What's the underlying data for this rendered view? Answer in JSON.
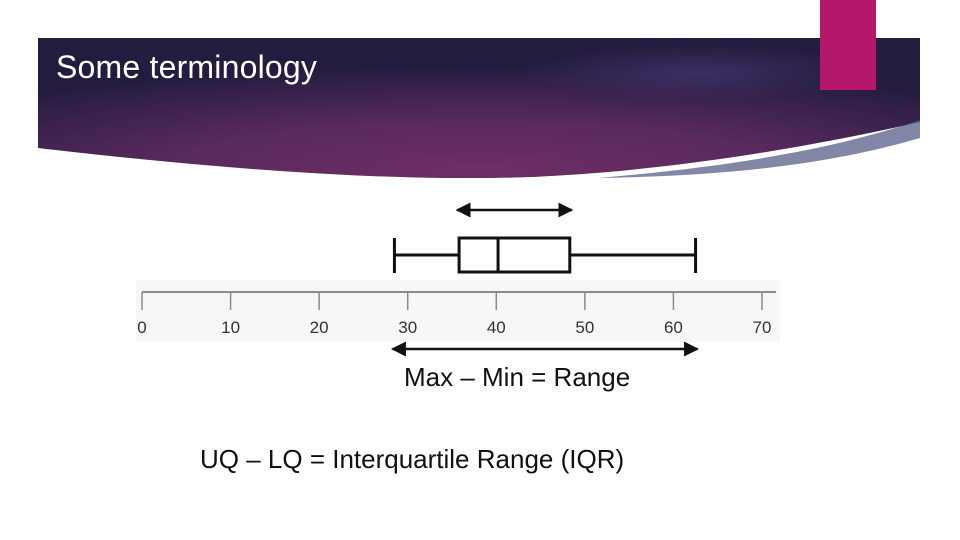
{
  "slide": {
    "title": "Some terminology"
  },
  "colors": {
    "banner_dark": "#231a3d",
    "banner_mid": "#5e2a60",
    "banner_highlight": "#6e2e64",
    "accent": "#b5176b",
    "ink": "#111111",
    "tick_gray": "#8a8a8a"
  },
  "axis": {
    "min": 0,
    "max": 70,
    "tick_labels": [
      "0",
      "10",
      "20",
      "30",
      "40",
      "50",
      "60",
      "70"
    ]
  },
  "box_plot": {
    "min": 28.5,
    "lower_quartile": 35.8,
    "median": 40.2,
    "upper_quartile": 48.3,
    "max": 62.5
  },
  "captions": {
    "range": "Max – Min = Range",
    "iqr": "UQ – LQ = Interquartile Range (IQR)"
  }
}
